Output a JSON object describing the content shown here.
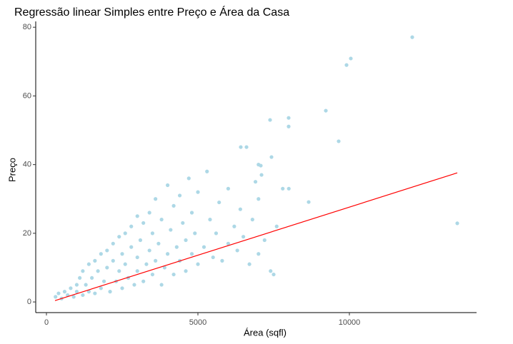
{
  "chart_data": {
    "type": "scatter",
    "title": "Regressão linear Simples entre Preço e Área da Casa",
    "x_label": "Área (sqfl)",
    "y_label": "Preço",
    "xlim": [
      -354,
      14198
    ],
    "ylim": [
      -3.1,
      81.7
    ],
    "xticks": [
      0,
      5000,
      10000
    ],
    "yticks": [
      0,
      20,
      40,
      60,
      80
    ],
    "grid": false,
    "series": [
      {
        "type": "scatter",
        "color": "#add8e6",
        "x": [
          300,
          400,
          500,
          600,
          700,
          800,
          900,
          1000,
          1000,
          1100,
          1200,
          1200,
          1300,
          1400,
          1400,
          1500,
          1600,
          1600,
          1700,
          1800,
          1800,
          1900,
          2000,
          2000,
          2100,
          2200,
          2200,
          2300,
          2400,
          2400,
          2500,
          2500,
          2600,
          2600,
          2700,
          2800,
          2800,
          2900,
          3000,
          3000,
          3000,
          3100,
          3200,
          3200,
          3300,
          3400,
          3400,
          3500,
          3500,
          3600,
          3600,
          3700,
          3800,
          3800,
          3900,
          4000,
          4000,
          4100,
          4200,
          4200,
          4300,
          4400,
          4400,
          4500,
          4600,
          4600,
          4700,
          4800,
          4800,
          4900,
          5000,
          5000,
          5200,
          5300,
          5400,
          5500,
          5600,
          5700,
          5800,
          6000,
          6000,
          6200,
          6300,
          6400,
          6500,
          6700,
          6800,
          7000,
          7000,
          7200,
          7400,
          7500,
          7600,
          7800,
          8000,
          7000,
          7100,
          6900,
          12075,
          10047,
          9906,
          9222,
          7382,
          7995,
          7995,
          9646,
          6604,
          6415,
          7429,
          13561,
          8656,
          7075
        ],
        "values": [
          1.5,
          2.5,
          1,
          3,
          2,
          4,
          1.5,
          5,
          3,
          7,
          2,
          9,
          5,
          11,
          3,
          7,
          12,
          2.5,
          9,
          14,
          4,
          6,
          15,
          10,
          3,
          12,
          17,
          6,
          19,
          9,
          14,
          4,
          20,
          11,
          7,
          16,
          22,
          5,
          13,
          25,
          9,
          18,
          6,
          23,
          11,
          15,
          26,
          8,
          20,
          30,
          12,
          17,
          5,
          24,
          10,
          34,
          14,
          21,
          8,
          28,
          16,
          12,
          31,
          23,
          9,
          18,
          36,
          14,
          26,
          20,
          11,
          32,
          16,
          38,
          24,
          13,
          20,
          29,
          12,
          17,
          33,
          22,
          15,
          27,
          19,
          11,
          24,
          30,
          14,
          18,
          9,
          8,
          22,
          33,
          33,
          40,
          37,
          35,
          77.1,
          70.9,
          69,
          55.7,
          53,
          53.6,
          51.1,
          46.8,
          45.1,
          45.1,
          42.2,
          22.9,
          29.1,
          39.7
        ]
      },
      {
        "type": "line",
        "color": "#ff0000",
        "x": [
          283,
          13561
        ],
        "values": [
          0.4,
          37.6
        ]
      }
    ]
  }
}
